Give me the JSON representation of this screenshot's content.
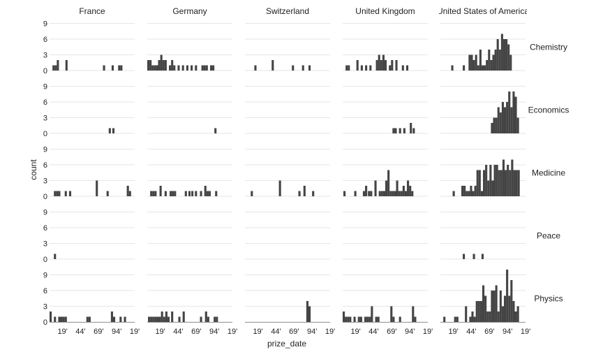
{
  "chart_data": {
    "type": "bar",
    "xlabel": "prize_date",
    "ylabel": "count",
    "x_tick_labels": [
      "19'",
      "44'",
      "69'",
      "94'",
      "19'"
    ],
    "y_tick_labels": [
      "0",
      "3",
      "6",
      "9"
    ],
    "x_range": [
      1901,
      2019
    ],
    "ylim": [
      0,
      9
    ],
    "bin_years": 3,
    "grid": true,
    "colors": {
      "bar": "#444444",
      "grid": "#e6e6e6",
      "baseline": "#999999"
    },
    "countries": [
      "France",
      "Germany",
      "Switzerland",
      "United Kingdom",
      "United States of America"
    ],
    "categories": [
      "Chemistry",
      "Economics",
      "Medicine",
      "Peace",
      "Physics"
    ],
    "panels": {
      "Chemistry": {
        "France": [
          [
            1905,
            1
          ],
          [
            1908,
            1
          ],
          [
            1911,
            2
          ],
          [
            1923,
            2
          ],
          [
            1975,
            1
          ],
          [
            1987,
            1
          ],
          [
            1996,
            1
          ],
          [
            1999,
            1
          ]
        ],
        "Germany": [
          [
            1901,
            2
          ],
          [
            1904,
            2
          ],
          [
            1907,
            1
          ],
          [
            1910,
            1
          ],
          [
            1913,
            1
          ],
          [
            1916,
            2
          ],
          [
            1919,
            3
          ],
          [
            1922,
            2
          ],
          [
            1925,
            2
          ],
          [
            1931,
            1
          ],
          [
            1934,
            2
          ],
          [
            1937,
            1
          ],
          [
            1943,
            1
          ],
          [
            1949,
            1
          ],
          [
            1955,
            1
          ],
          [
            1961,
            1
          ],
          [
            1967,
            1
          ],
          [
            1976,
            1
          ],
          [
            1979,
            1
          ],
          [
            1982,
            1
          ],
          [
            1988,
            1
          ],
          [
            1991,
            1
          ]
        ],
        "Switzerland": [
          [
            1914,
            1
          ],
          [
            1938,
            2
          ],
          [
            1966,
            1
          ],
          [
            1980,
            1
          ],
          [
            1989,
            1
          ]
        ],
        "United Kingdom": [
          [
            1905,
            1
          ],
          [
            1908,
            1
          ],
          [
            1920,
            2
          ],
          [
            1926,
            1
          ],
          [
            1932,
            1
          ],
          [
            1938,
            1
          ],
          [
            1947,
            2
          ],
          [
            1950,
            3
          ],
          [
            1953,
            2
          ],
          [
            1956,
            3
          ],
          [
            1959,
            2
          ],
          [
            1965,
            1
          ],
          [
            1968,
            2
          ],
          [
            1974,
            2
          ],
          [
            1983,
            1
          ],
          [
            1989,
            1
          ]
        ],
        "United States of America": [
          [
            1916,
            1
          ],
          [
            1932,
            1
          ],
          [
            1940,
            3
          ],
          [
            1943,
            3
          ],
          [
            1946,
            2
          ],
          [
            1949,
            3
          ],
          [
            1952,
            1
          ],
          [
            1955,
            4
          ],
          [
            1958,
            1
          ],
          [
            1961,
            1
          ],
          [
            1964,
            2
          ],
          [
            1967,
            4
          ],
          [
            1970,
            2
          ],
          [
            1973,
            3
          ],
          [
            1976,
            4
          ],
          [
            1979,
            6
          ],
          [
            1982,
            4
          ],
          [
            1985,
            7
          ],
          [
            1988,
            6
          ],
          [
            1991,
            6
          ],
          [
            1994,
            5
          ],
          [
            1997,
            3
          ]
        ]
      },
      "Economics": {
        "France": [
          [
            1983,
            1
          ],
          [
            1988,
            1
          ]
        ],
        "Germany": [
          [
            1994,
            1
          ]
        ],
        "Switzerland": [],
        "United Kingdom": [
          [
            1970,
            1
          ],
          [
            1973,
            1
          ],
          [
            1979,
            1
          ],
          [
            1985,
            1
          ],
          [
            1994,
            2
          ],
          [
            1998,
            1
          ]
        ],
        "United States of America": [
          [
            1971,
            2
          ],
          [
            1974,
            3
          ],
          [
            1977,
            3
          ],
          [
            1980,
            5
          ],
          [
            1983,
            4
          ],
          [
            1986,
            6
          ],
          [
            1989,
            5
          ],
          [
            1992,
            6
          ],
          [
            1995,
            8
          ],
          [
            1998,
            5
          ],
          [
            2001,
            8
          ],
          [
            2004,
            7
          ],
          [
            2007,
            3
          ]
        ]
      },
      "Medicine": {
        "France": [
          [
            1907,
            1
          ],
          [
            1910,
            1
          ],
          [
            1913,
            1
          ],
          [
            1922,
            1
          ],
          [
            1928,
            1
          ],
          [
            1965,
            3
          ],
          [
            1980,
            1
          ],
          [
            2008,
            2
          ],
          [
            2011,
            1
          ]
        ],
        "Germany": [
          [
            1905,
            1
          ],
          [
            1908,
            1
          ],
          [
            1911,
            1
          ],
          [
            1918,
            2
          ],
          [
            1925,
            1
          ],
          [
            1932,
            1
          ],
          [
            1935,
            1
          ],
          [
            1938,
            1
          ],
          [
            1953,
            1
          ],
          [
            1958,
            1
          ],
          [
            1962,
            1
          ],
          [
            1967,
            1
          ],
          [
            1974,
            1
          ],
          [
            1980,
            2
          ],
          [
            1983,
            1
          ],
          [
            1986,
            1
          ],
          [
            1995,
            1
          ]
        ],
        "Switzerland": [
          [
            1909,
            1
          ],
          [
            1948,
            3
          ],
          [
            1975,
            1
          ],
          [
            1982,
            2
          ],
          [
            1994,
            1
          ]
        ],
        "United Kingdom": [
          [
            1902,
            1
          ],
          [
            1917,
            1
          ],
          [
            1929,
            1
          ],
          [
            1932,
            2
          ],
          [
            1936,
            1
          ],
          [
            1939,
            1
          ],
          [
            1945,
            3
          ],
          [
            1951,
            1
          ],
          [
            1954,
            1
          ],
          [
            1957,
            1
          ],
          [
            1960,
            3
          ],
          [
            1963,
            5
          ],
          [
            1966,
            1
          ],
          [
            1969,
            1
          ],
          [
            1972,
            1
          ],
          [
            1975,
            3
          ],
          [
            1978,
            1
          ],
          [
            1981,
            1
          ],
          [
            1984,
            2
          ],
          [
            1987,
            1
          ],
          [
            1990,
            3
          ],
          [
            1993,
            2
          ],
          [
            1996,
            1
          ]
        ],
        "United States of America": [
          [
            1918,
            1
          ],
          [
            1930,
            2
          ],
          [
            1933,
            2
          ],
          [
            1936,
            1
          ],
          [
            1939,
            1
          ],
          [
            1942,
            2
          ],
          [
            1945,
            1
          ],
          [
            1948,
            2
          ],
          [
            1951,
            5
          ],
          [
            1954,
            5
          ],
          [
            1957,
            1
          ],
          [
            1960,
            5
          ],
          [
            1963,
            6
          ],
          [
            1966,
            3
          ],
          [
            1969,
            6
          ],
          [
            1972,
            3
          ],
          [
            1975,
            6
          ],
          [
            1978,
            6
          ],
          [
            1981,
            5
          ],
          [
            1984,
            5
          ],
          [
            1987,
            7
          ],
          [
            1990,
            5
          ],
          [
            1993,
            6
          ],
          [
            1996,
            5
          ],
          [
            1999,
            7
          ],
          [
            2002,
            5
          ],
          [
            2005,
            5
          ],
          [
            2008,
            5
          ]
        ]
      },
      "Peace": {
        "France": [
          [
            1907,
            1
          ]
        ],
        "Germany": [],
        "Switzerland": [],
        "United Kingdom": [],
        "United States of America": [
          [
            1932,
            1
          ],
          [
            1946,
            1
          ],
          [
            1958,
            1
          ]
        ]
      },
      "Physics": {
        "France": [
          [
            1901,
            2
          ],
          [
            1907,
            1
          ],
          [
            1913,
            1
          ],
          [
            1916,
            1
          ],
          [
            1919,
            1
          ],
          [
            1922,
            1
          ],
          [
            1952,
            1
          ],
          [
            1955,
            1
          ],
          [
            1986,
            2
          ],
          [
            1989,
            1
          ],
          [
            1998,
            1
          ],
          [
            2004,
            1
          ]
        ],
        "Germany": [
          [
            1902,
            1
          ],
          [
            1905,
            1
          ],
          [
            1908,
            1
          ],
          [
            1911,
            1
          ],
          [
            1914,
            1
          ],
          [
            1917,
            1
          ],
          [
            1920,
            2
          ],
          [
            1923,
            1
          ],
          [
            1926,
            2
          ],
          [
            1929,
            1
          ],
          [
            1934,
            2
          ],
          [
            1944,
            1
          ],
          [
            1950,
            2
          ],
          [
            1974,
            1
          ],
          [
            1981,
            2
          ],
          [
            1984,
            1
          ],
          [
            1993,
            1
          ],
          [
            1996,
            1
          ]
        ],
        "Switzerland": [
          [
            1986,
            4
          ],
          [
            1989,
            3
          ]
        ],
        "United Kingdom": [
          [
            1901,
            2
          ],
          [
            1904,
            1
          ],
          [
            1907,
            1
          ],
          [
            1910,
            1
          ],
          [
            1916,
            1
          ],
          [
            1922,
            1
          ],
          [
            1925,
            1
          ],
          [
            1931,
            1
          ],
          [
            1934,
            1
          ],
          [
            1937,
            1
          ],
          [
            1940,
            3
          ],
          [
            1946,
            1
          ],
          [
            1949,
            1
          ],
          [
            1967,
            3
          ],
          [
            1970,
            1
          ],
          [
            1979,
            1
          ],
          [
            1997,
            3
          ],
          [
            2000,
            1
          ]
        ],
        "United States of America": [
          [
            1905,
            1
          ],
          [
            1920,
            1
          ],
          [
            1923,
            1
          ],
          [
            1935,
            3
          ],
          [
            1941,
            1
          ],
          [
            1944,
            2
          ],
          [
            1947,
            1
          ],
          [
            1950,
            4
          ],
          [
            1953,
            4
          ],
          [
            1956,
            4
          ],
          [
            1959,
            7
          ],
          [
            1962,
            5
          ],
          [
            1965,
            2
          ],
          [
            1968,
            2
          ],
          [
            1971,
            6
          ],
          [
            1974,
            6
          ],
          [
            1977,
            7
          ],
          [
            1980,
            2
          ],
          [
            1983,
            6
          ],
          [
            1986,
            3
          ],
          [
            1989,
            5
          ],
          [
            1992,
            10
          ],
          [
            1995,
            5
          ],
          [
            1998,
            8
          ],
          [
            2001,
            4
          ],
          [
            2004,
            2
          ],
          [
            2007,
            3
          ]
        ]
      }
    }
  }
}
